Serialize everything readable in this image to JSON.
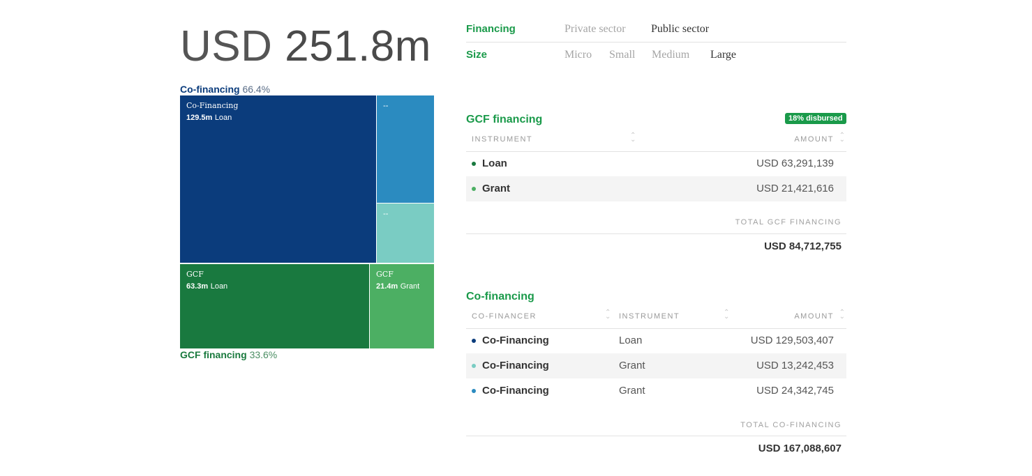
{
  "total": {
    "unit": "USD",
    "value": "251.8m"
  },
  "treemap": {
    "cofinancing_caption": {
      "name": "Co-financing",
      "percent": "66.4%"
    },
    "gcf_caption": {
      "name": "GCF financing",
      "percent": "33.6%"
    },
    "tiles": [
      {
        "line1": "Co-Financing",
        "amount": "129.5m",
        "instrument": "Loan",
        "color": "#0b3c7c"
      },
      {
        "line1": "--",
        "amount": "",
        "instrument": "",
        "color": "#2b8bc0"
      },
      {
        "line1": "--",
        "amount": "",
        "instrument": "",
        "color": "#7accc3"
      },
      {
        "line1": "GCF",
        "amount": "63.3m",
        "instrument": "Loan",
        "color": "#19793f"
      },
      {
        "line1": "GCF",
        "amount": "21.4m",
        "instrument": "Grant",
        "color": "#4caf63"
      }
    ]
  },
  "filters": {
    "financing": {
      "label": "Financing",
      "options": [
        "Private sector",
        "Public sector"
      ],
      "active": "Public sector"
    },
    "size": {
      "label": "Size",
      "options": [
        "Micro",
        "Small",
        "Medium",
        "Large"
      ],
      "active": "Large"
    }
  },
  "gcf": {
    "title": "GCF financing",
    "badge": "18% disbursed",
    "headers": {
      "instrument": "INSTRUMENT",
      "amount": "AMOUNT"
    },
    "rows": [
      {
        "name": "Loan",
        "amount": "USD 63,291,139",
        "color": "#19793f"
      },
      {
        "name": "Grant",
        "amount": "USD 21,421,616",
        "color": "#4caf63"
      }
    ],
    "total_label": "TOTAL GCF FINANCING",
    "total_value": "USD 84,712,755"
  },
  "cofin": {
    "title": "Co-financing",
    "headers": {
      "financer": "CO-FINANCER",
      "instrument": "INSTRUMENT",
      "amount": "AMOUNT"
    },
    "rows": [
      {
        "name": "Co-Financing",
        "instrument": "Loan",
        "amount": "USD 129,503,407",
        "color": "#0b3c7c"
      },
      {
        "name": "Co-Financing",
        "instrument": "Grant",
        "amount": "USD 13,242,453",
        "color": "#7accc3"
      },
      {
        "name": "Co-Financing",
        "instrument": "Grant",
        "amount": "USD 24,342,745",
        "color": "#2b8bc0"
      }
    ],
    "total_label": "TOTAL CO-FINANCING",
    "total_value": "USD 167,088,607"
  }
}
